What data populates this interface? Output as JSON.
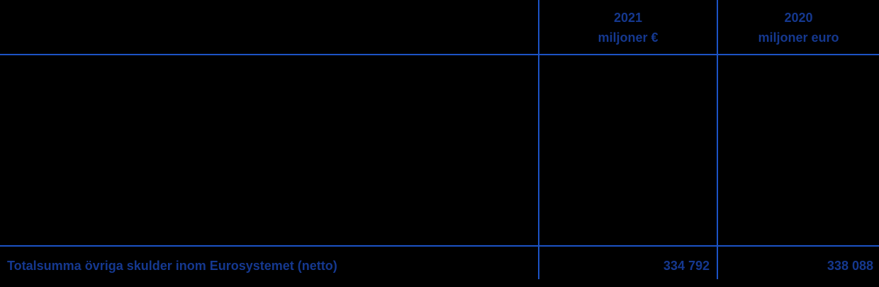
{
  "table": {
    "header": {
      "col_2021": {
        "year": "2021",
        "unit": "miljoner €"
      },
      "col_2020": {
        "year": "2020",
        "unit": "miljoner euro"
      }
    },
    "total_row": {
      "label": "Totalsumma övriga skulder inom Eurosystemet (netto)",
      "value_2021": "334 792",
      "value_2020": "338 088"
    },
    "colors": {
      "rule_blue": "#1C53C5",
      "text_blue": "#15388F",
      "background": "#000000"
    }
  }
}
